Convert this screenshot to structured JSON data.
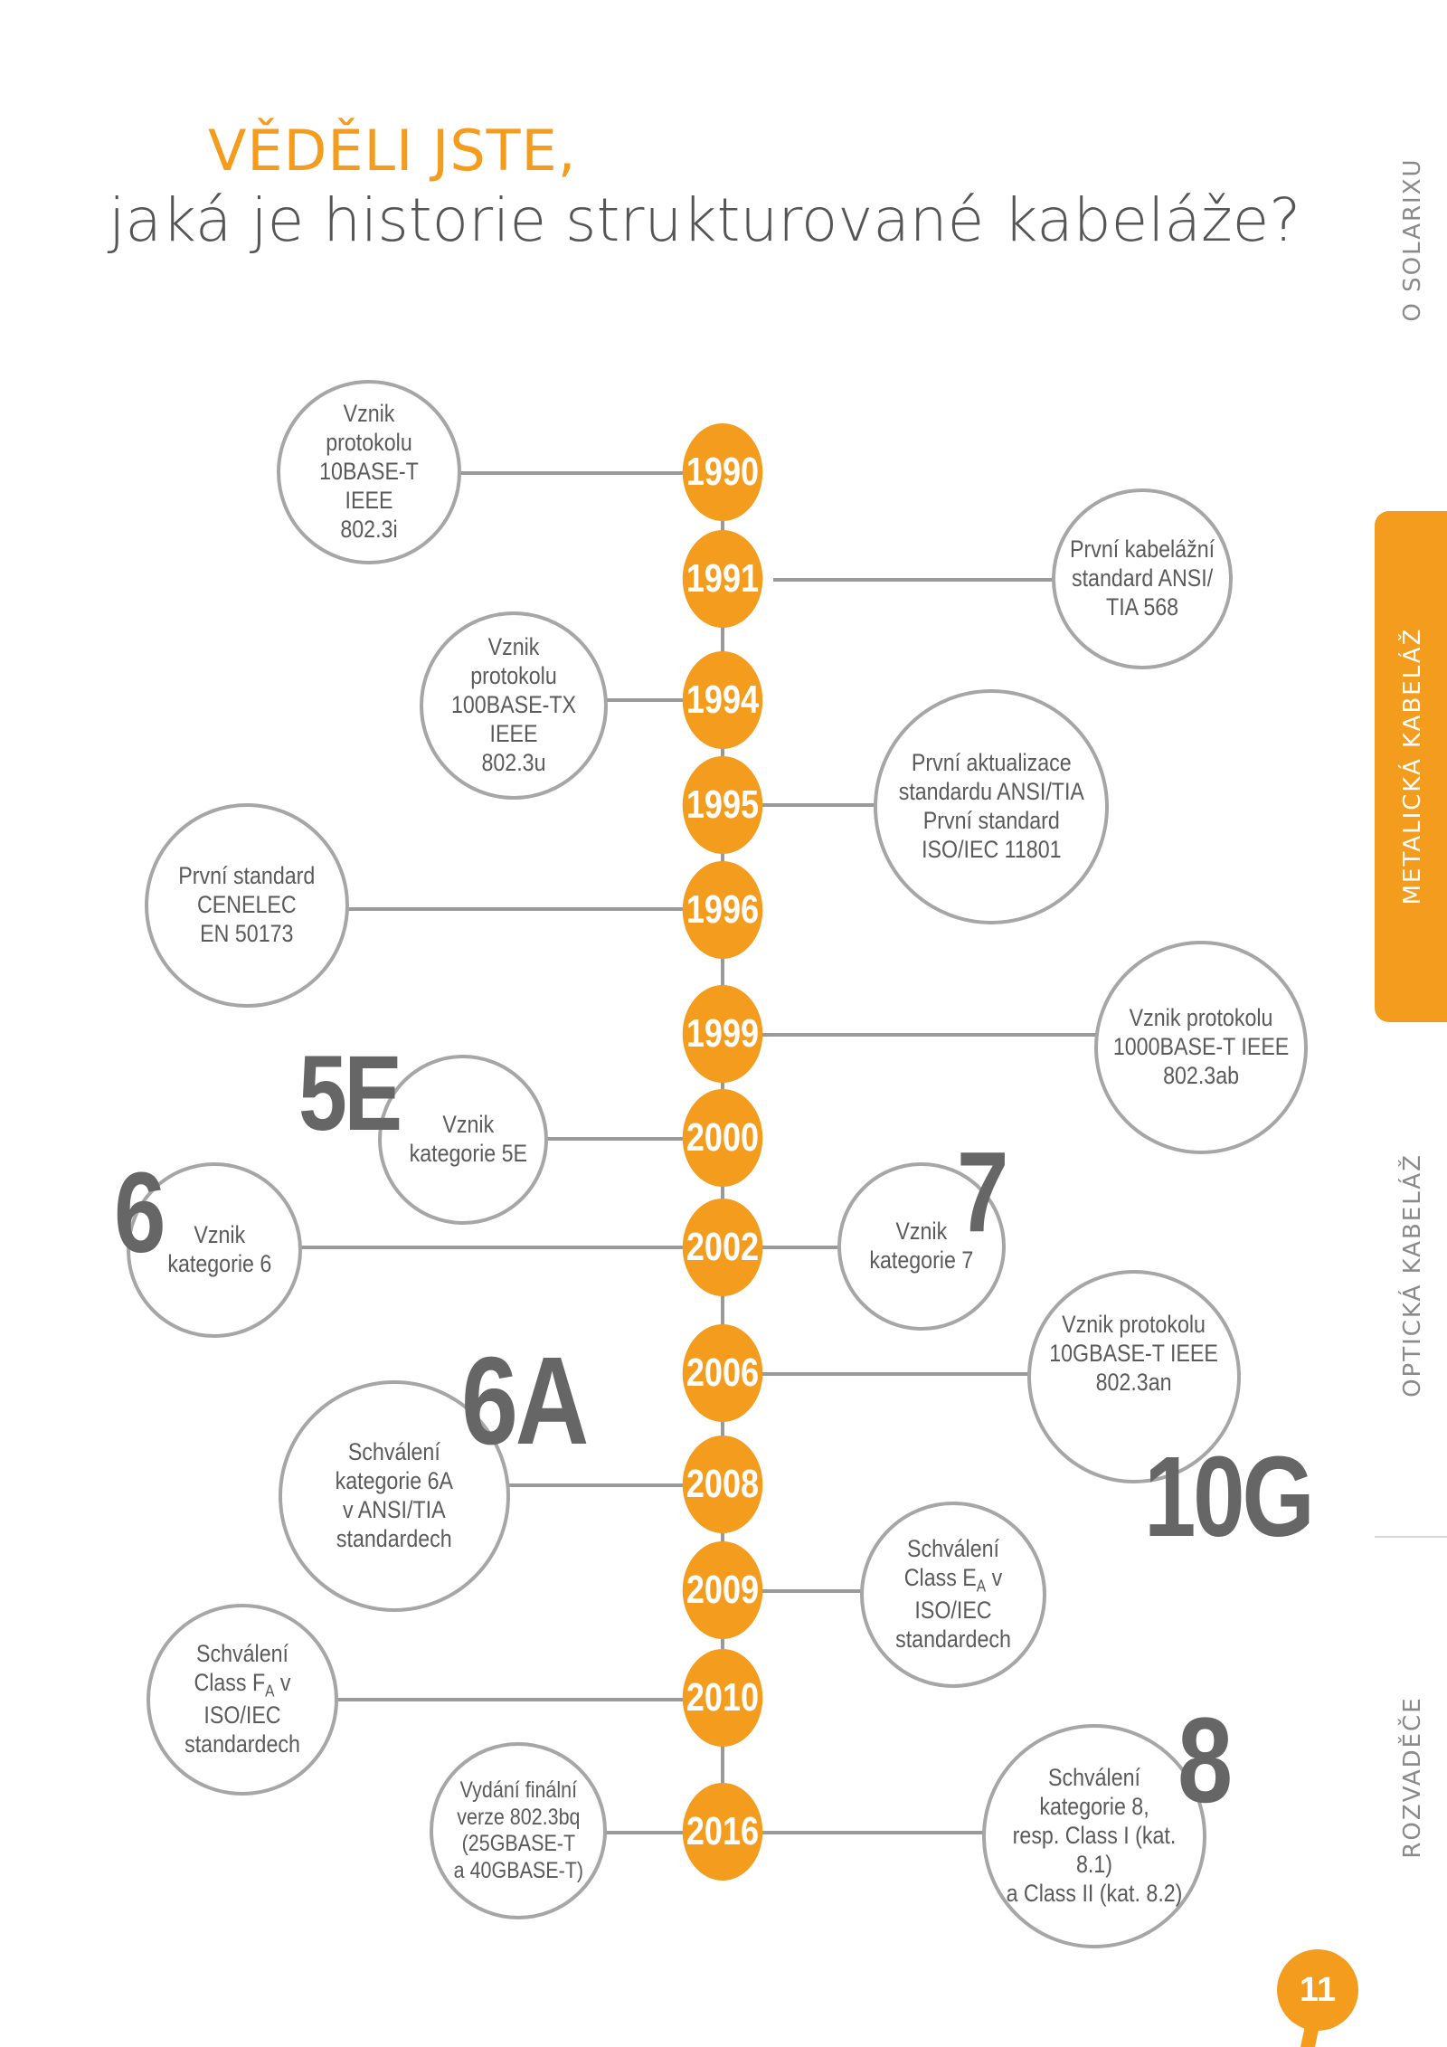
{
  "heading": {
    "line1": "VĚDĚLI JSTE,",
    "line2": "jaká je historie strukturované kabeláže?"
  },
  "side_nav": [
    {
      "label": "O SOLARIXU",
      "active": false
    },
    {
      "label": "METALICKÁ KABELÁŽ",
      "active": true
    },
    {
      "label": "OPTICKÁ KABELÁŽ",
      "active": false
    },
    {
      "label": "ROZVADĚČE",
      "active": false
    }
  ],
  "colors": {
    "accent": "#f39c1e",
    "line": "#9a9a9a",
    "text": "#5a5a5a"
  },
  "timeline": {
    "years": [
      "1990",
      "1991",
      "1994",
      "1995",
      "1996",
      "1999",
      "2000",
      "2002",
      "2006",
      "2008",
      "2009",
      "2010",
      "2016"
    ],
    "events": [
      {
        "year": "1990",
        "text": "Vznik\nprotokolu\n10BASE-T IEEE\n802.3i"
      },
      {
        "year": "1991",
        "text": "První kabelážní\nstandard ANSI/\nTIA 568"
      },
      {
        "year": "1994",
        "text": "Vznik\nprotokolu\n100BASE-TX IEEE\n802.3u"
      },
      {
        "year": "1995",
        "text": "První aktualizace\nstandardu ANSI/TIA\nPrvní standard\nISO/IEC 11801"
      },
      {
        "year": "1996",
        "text": "První standard\nCENELEC\nEN 50173"
      },
      {
        "year": "1999",
        "text": "Vznik protokolu\n1000BASE-T IEEE\n802.3ab"
      },
      {
        "year": "2000",
        "text": "Vznik\nkategorie 5E",
        "badge": "5E"
      },
      {
        "year": "2002",
        "text": "Vznik\nkategorie 6",
        "badge": "6"
      },
      {
        "year": "2002",
        "text": "Vznik\nkategorie 7",
        "badge": "7"
      },
      {
        "year": "2006",
        "text": "Vznik protokolu\n10GBASE-T IEEE\n802.3an",
        "badge": "10G"
      },
      {
        "year": "2008",
        "text": "Schválení\nkategorie 6A\nv ANSI/TIA\nstandardech",
        "badge": "6A"
      },
      {
        "year": "2009",
        "pre": "Schválení\nClass E",
        "sub": "A",
        "post": " v ISO/IEC\nstandardech"
      },
      {
        "year": "2010",
        "pre": "Schválení\nClass F",
        "sub": "A",
        "post": " v ISO/IEC\nstandardech"
      },
      {
        "year": "2016",
        "text": "Vydání finální\nverze 802.3bq\n(25GBASE-T\na 40GBASE-T)"
      },
      {
        "year": "2016",
        "text": "Schválení\nkategorie 8,\nresp. Class I (kat. 8.1)\na Class II (kat. 8.2)",
        "badge": "8"
      }
    ]
  },
  "page_number": "11"
}
